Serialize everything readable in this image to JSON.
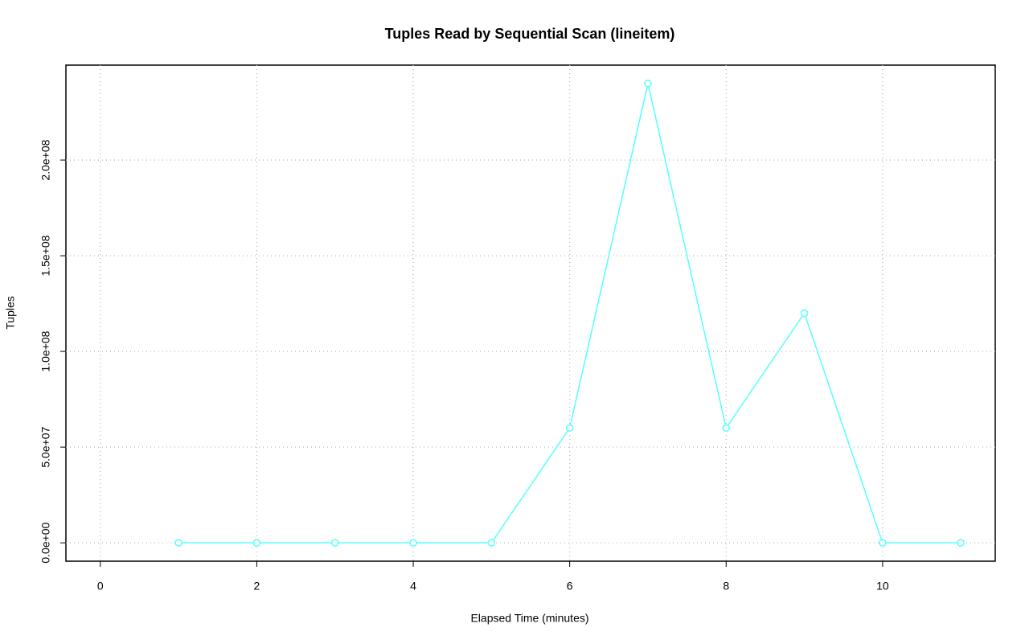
{
  "chart_data": {
    "type": "line",
    "title": "Tuples Read by Sequential Scan (lineitem)",
    "x_label": "Elapsed Time (minutes)",
    "y_label": "Tuples",
    "x": [
      1,
      2,
      3,
      4,
      5,
      6,
      7,
      8,
      9,
      10,
      11
    ],
    "series": [
      {
        "name": "lineitem",
        "color": "#55ffff",
        "values": [
          0,
          0,
          0,
          0,
          0,
          60000000,
          240000000,
          60000000,
          120000000,
          0,
          0
        ]
      }
    ],
    "xlim": [
      -0.44,
      11.44
    ],
    "xticks": [
      0,
      2,
      4,
      6,
      8,
      10
    ],
    "ylim": [
      -9600000,
      249600000
    ],
    "yticks": [
      {
        "value": 0,
        "label": "0.0e+00"
      },
      {
        "value": 50000000,
        "label": "5.0e+07"
      },
      {
        "value": 100000000,
        "label": "1.0e+08"
      },
      {
        "value": 150000000,
        "label": "1.5e+08"
      },
      {
        "value": 200000000,
        "label": "2.0e+08"
      }
    ],
    "grid": true
  }
}
